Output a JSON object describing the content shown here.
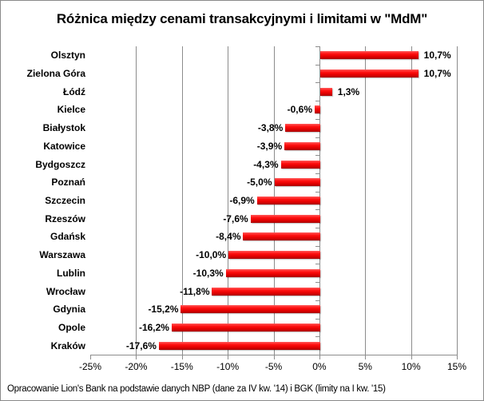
{
  "chart_data": {
    "type": "bar",
    "orientation": "horizontal",
    "title": "Różnica między cenami transakcyjnymi i limitami w \"MdM\"",
    "xlabel": "",
    "ylabel": "",
    "xlim": [
      -25,
      15
    ],
    "x_ticks": [
      "-25%",
      "-20%",
      "-15%",
      "-10%",
      "-5%",
      "0%",
      "5%",
      "10%",
      "15%"
    ],
    "grid": "vertical",
    "legend": null,
    "categories": [
      "Olsztyn",
      "Zielona Góra",
      "Łódź",
      "Kielce",
      "Białystok",
      "Katowice",
      "Bydgoszcz",
      "Poznań",
      "Szczecin",
      "Rzeszów",
      "Gdańsk",
      "Warszawa",
      "Lublin",
      "Wrocław",
      "Gdynia",
      "Opole",
      "Kraków"
    ],
    "values": [
      10.7,
      10.7,
      1.3,
      -0.6,
      -3.8,
      -3.9,
      -4.3,
      -5.0,
      -6.9,
      -7.6,
      -8.4,
      -10.0,
      -10.3,
      -11.8,
      -15.2,
      -16.2,
      -17.6
    ],
    "value_labels": [
      "10,7%",
      "10,7%",
      "1,3%",
      "-0,6%",
      "-3,8%",
      "-3,9%",
      "-4,3%",
      "-5,0%",
      "-6,9%",
      "-7,6%",
      "-8,4%",
      "-10,0%",
      "-10,3%",
      "-11,8%",
      "-15,2%",
      "-16,2%",
      "-17,6%"
    ],
    "bar_color": "#e00000",
    "source_note": "Opracowanie Lion's Bank na podstawie danych  NBP (dane za IV kw. '14) i BGK (limity na I kw. '15)"
  },
  "title": "Różnica między cenami transakcyjnymi i limitami w \"MdM\"",
  "source": "Opracowanie Lion's Bank na podstawie danych  NBP (dane za IV kw. '14) i BGK (limity na I kw. '15)"
}
